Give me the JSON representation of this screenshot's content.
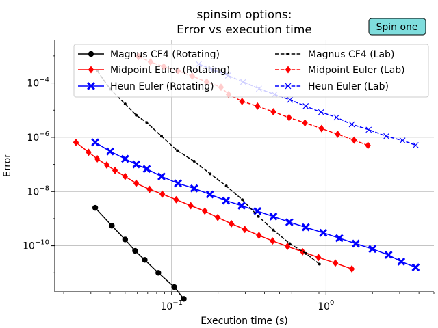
{
  "chart_data": {
    "type": "line",
    "title_lines": [
      "spinsim options:",
      "Error vs execution time"
    ],
    "xlabel": "Execution time (s)",
    "ylabel": "Error",
    "xscale": "log",
    "yscale": "log",
    "xlim": [
      0.0175,
      5.0
    ],
    "ylim": [
      2e-12,
      0.004
    ],
    "grid": true,
    "legend_position": "top",
    "badge": "Spin one",
    "badge_color": "#7fdddd",
    "x_ticks": [
      {
        "value": 0.1,
        "base": "10",
        "exp": "−1"
      },
      {
        "value": 1,
        "base": "10",
        "exp": "0"
      }
    ],
    "y_ticks": [
      {
        "value": 1e-10,
        "base": "10",
        "exp": "−10"
      },
      {
        "value": 1e-08,
        "base": "10",
        "exp": "−8"
      },
      {
        "value": 1e-06,
        "base": "10",
        "exp": "−6"
      },
      {
        "value": 0.0001,
        "base": "10",
        "exp": "−4"
      }
    ],
    "series": [
      {
        "name": "Magnus CF4 (Rotating)",
        "color": "#000000",
        "dash": "solid",
        "marker": "circle",
        "x": [
          0.032,
          0.041,
          0.05,
          0.058,
          0.067,
          0.082,
          0.104,
          0.12
        ],
        "y": [
          2.5e-09,
          5.5e-10,
          1.7e-10,
          6.5e-11,
          3e-11,
          1e-11,
          3e-12,
          1.1e-12
        ]
      },
      {
        "name": "Midpoint Euler (Rotating)",
        "color": "#ff0000",
        "dash": "solid",
        "marker": "diamond",
        "x": [
          0.024,
          0.029,
          0.033,
          0.038,
          0.043,
          0.05,
          0.059,
          0.072,
          0.087,
          0.107,
          0.133,
          0.164,
          0.199,
          0.244,
          0.298,
          0.368,
          0.451,
          0.563,
          0.706,
          0.894,
          1.15,
          1.47
        ],
        "y": [
          6.5e-07,
          2.8e-07,
          1.6e-07,
          9.5e-08,
          6e-08,
          3.6e-08,
          2e-08,
          1.2e-08,
          8e-09,
          5e-09,
          3e-09,
          1.9e-09,
          1.1e-09,
          6.5e-10,
          4e-10,
          2.4e-10,
          1.5e-10,
          9.5e-11,
          6e-11,
          3.7e-11,
          2.3e-11,
          1.4e-11
        ]
      },
      {
        "name": "Heun Euler (Rotating)",
        "color": "#0000ff",
        "dash": "solid",
        "marker": "x-filled",
        "x": [
          0.032,
          0.04,
          0.05,
          0.059,
          0.069,
          0.086,
          0.11,
          0.14,
          0.177,
          0.225,
          0.284,
          0.36,
          0.456,
          0.579,
          0.74,
          0.96,
          1.22,
          1.56,
          2.0,
          2.54,
          3.07,
          3.81
        ],
        "y": [
          6.5e-07,
          3e-07,
          1.6e-07,
          1e-07,
          6.8e-08,
          3.6e-08,
          2e-08,
          1.3e-08,
          7.8e-09,
          4.6e-09,
          3e-09,
          1.9e-09,
          1.2e-09,
          7.4e-10,
          4.8e-10,
          3e-10,
          1.9e-10,
          1.2e-10,
          7.6e-11,
          4.6e-11,
          2.6e-11,
          1.6e-11
        ]
      },
      {
        "name": "Magnus CF4 (Lab)",
        "color": "#000000",
        "dash": "dashed",
        "marker": "dot",
        "x": [
          0.033,
          0.04,
          0.05,
          0.059,
          0.069,
          0.086,
          0.109,
          0.14,
          0.178,
          0.226,
          0.287,
          0.365,
          0.456,
          0.583,
          0.742,
          0.907
        ],
        "y": [
          0.00028,
          6e-05,
          1.7e-05,
          6.5e-06,
          3.5e-06,
          1.1e-06,
          3.2e-07,
          1.3e-07,
          4.5e-08,
          1.6e-08,
          5e-09,
          1.2e-09,
          3.8e-10,
          1.2e-10,
          5.2e-11,
          2.1e-11
        ]
      },
      {
        "name": "Midpoint Euler (Lab)",
        "color": "#ff0000",
        "dash": "dashed",
        "marker": "diamond",
        "x": [
          0.061,
          0.073,
          0.089,
          0.11,
          0.136,
          0.169,
          0.209,
          0.234,
          0.286,
          0.36,
          0.456,
          0.577,
          0.731,
          0.935,
          1.19,
          1.52,
          1.87
        ],
        "y": [
          0.00095,
          0.0006,
          0.0004,
          0.00028,
          0.00018,
          0.00011,
          7e-05,
          3.8e-05,
          2.1e-05,
          1.4e-05,
          8.7e-06,
          5.3e-06,
          3.4e-06,
          2.1e-06,
          1.3e-06,
          7.8e-07,
          5e-07
        ]
      },
      {
        "name": "Heun Euler (Lab)",
        "color": "#0000ff",
        "dash": "dashed",
        "marker": "x",
        "x": [
          0.15,
          0.186,
          0.232,
          0.291,
          0.368,
          0.464,
          0.585,
          0.739,
          0.93,
          1.17,
          1.47,
          1.89,
          2.46,
          3.13,
          3.81
        ],
        "y": [
          0.0005,
          0.00031,
          0.00019,
          0.00011,
          6.2e-05,
          3.8e-05,
          2.4e-05,
          1.4e-05,
          8.4e-06,
          5.4e-06,
          3e-06,
          1.9e-06,
          1.1e-06,
          7.6e-07,
          5.1e-07
        ]
      }
    ]
  }
}
